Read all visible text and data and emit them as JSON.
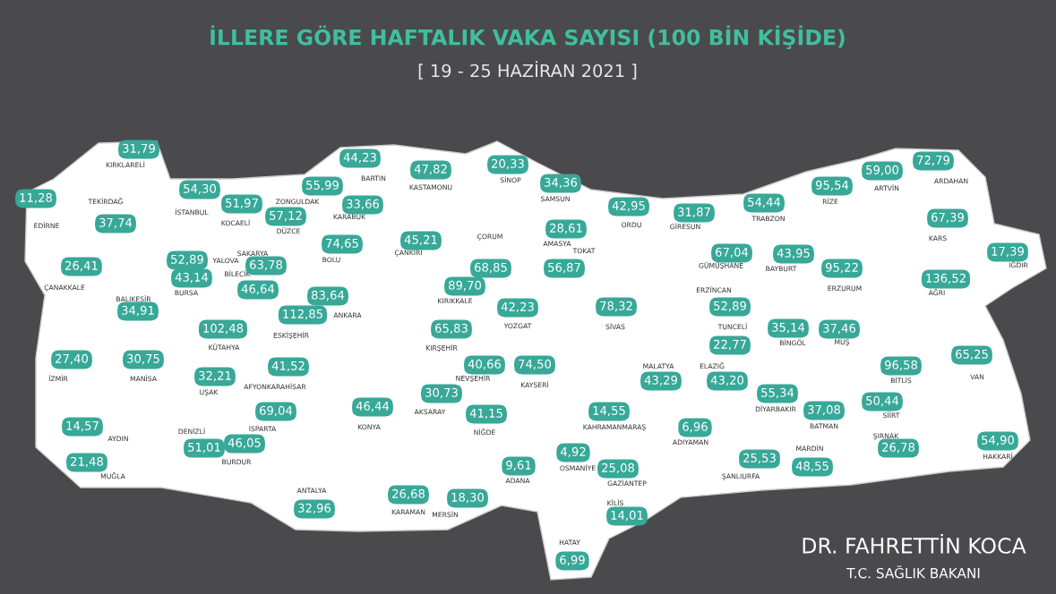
{
  "chart_data": {
    "type": "other",
    "title": "İLLERE GÖRE HAFTALIK VAKA SAYISI (100 BİN KİŞİDE)",
    "subtitle": "[ 19 - 25 HAZİRAN 2021 ]",
    "categories": [
      "KIRKLARELİ",
      "EDİRNE",
      "TEKİRDAĞ",
      "İSTANBUL",
      "KOCAELİ",
      "YALOVA",
      "DÜZCE",
      "ZONGULDAK",
      "BARTIN",
      "KARABÜK",
      "KASTAMONU",
      "SİNOP",
      "SAMSUN",
      "ORDU",
      "GİRESUN",
      "TRABZON",
      "RİZE",
      "ARTVİN",
      "ARDAHAN",
      "KARS",
      "IĞDIR",
      "AĞRI",
      "ERZURUM",
      "BAYBURT",
      "GÜMÜŞHANE",
      "ÇANAKKALE",
      "BALIKESİR",
      "BURSA",
      "BİLECİK",
      "SAKARYA",
      "BOLU",
      "ÇANKIRI",
      "ÇORUM",
      "AMASYA",
      "TOKAT",
      "KIRIKKALE",
      "YOZGAT",
      "SİVAS",
      "ERZİNCAN",
      "TUNCELİ",
      "ELAZIĞ",
      "MALATYA",
      "BİNGÖL",
      "MUŞ",
      "BİTLİS",
      "VAN",
      "SİİRT",
      "BATMAN",
      "DİYARBAKIR",
      "ŞIRNAK",
      "HAKKARİ",
      "MARDİN",
      "ŞANLIURFA",
      "ADIYAMAN",
      "KAHRAMANMARAŞ",
      "GAZİANTEP",
      "KİLİS",
      "OSMANİYE",
      "HATAY",
      "ADANA",
      "MERSİN",
      "KARAMAN",
      "NİĞDE",
      "NEVŞEHİR",
      "KAYSERİ",
      "KIRŞEHİR",
      "AKSARAY",
      "KONYA",
      "ANKARA",
      "ESKİŞEHİR",
      "KÜTAHYA",
      "AFYONKARAHİSAR",
      "UŞAK",
      "MANİSA",
      "İZMİR",
      "AYDIN",
      "MUĞLA",
      "DENİZLİ",
      "BURDUR",
      "ISPARTA",
      "ANTALYA"
    ],
    "values": [
      31.79,
      11.28,
      37.74,
      54.3,
      51.97,
      52.89,
      57.12,
      55.99,
      44.23,
      33.66,
      47.82,
      20.33,
      34.36,
      42.95,
      31.87,
      54.44,
      95.54,
      59.0,
      72.79,
      67.39,
      17.39,
      136.52,
      95.22,
      43.95,
      67.04,
      26.41,
      34.91,
      43.14,
      46.64,
      63.78,
      74.65,
      45.21,
      68.85,
      28.61,
      56.87,
      89.7,
      42.23,
      78.32,
      52.89,
      22.77,
      43.2,
      43.29,
      35.14,
      37.46,
      96.58,
      65.25,
      50.44,
      37.08,
      55.34,
      26.78,
      54.9,
      48.55,
      25.53,
      6.96,
      14.55,
      25.08,
      14.01,
      4.92,
      6.99,
      9.61,
      18.3,
      26.68,
      41.15,
      40.66,
      74.5,
      65.83,
      30.73,
      46.44,
      83.64,
      112.85,
      102.48,
      41.52,
      32.21,
      30.75,
      27.4,
      14.57,
      21.48,
      51.01,
      46.05,
      69.04,
      32.96
    ],
    "value_labels": [
      "31,79",
      "11,28",
      "37,74",
      "54,30",
      "51,97",
      "52,89",
      "57,12",
      "55,99",
      "44,23",
      "33,66",
      "47,82",
      "20,33",
      "34,36",
      "42,95",
      "31,87",
      "54,44",
      "95,54",
      "59,00",
      "72,79",
      "67,39",
      "17,39",
      "136,52",
      "95,22",
      "43,95",
      "67,04",
      "26,41",
      "34,91",
      "43,14",
      "46,64",
      "63,78",
      "74,65",
      "45,21",
      "68,85",
      "28,61",
      "56,87",
      "89,70",
      "42,23",
      "78,32",
      "52,89",
      "22,77",
      "43,20",
      "43,29",
      "35,14",
      "37,46",
      "96,58",
      "65,25",
      "50,44",
      "37,08",
      "55,34",
      "26,78",
      "54,90",
      "48,55",
      "25,53",
      "6,96",
      "14,55",
      "25,08",
      "14,01",
      "4,92",
      "6,99",
      "9,61",
      "18,30",
      "26,68",
      "41,15",
      "40,66",
      "74,50",
      "65,83",
      "30,73",
      "46,44",
      "83,64",
      "112,85",
      "102,48",
      "41,52",
      "32,21",
      "30,75",
      "27,40",
      "14,57",
      "21,48",
      "51,01",
      "46,05",
      "69,04",
      "32,96"
    ],
    "color": "#38a898",
    "annotations": [
      "DR. FAHRETTİN KOCA",
      "T.C. SAĞLIK BAKANI"
    ]
  }
}
